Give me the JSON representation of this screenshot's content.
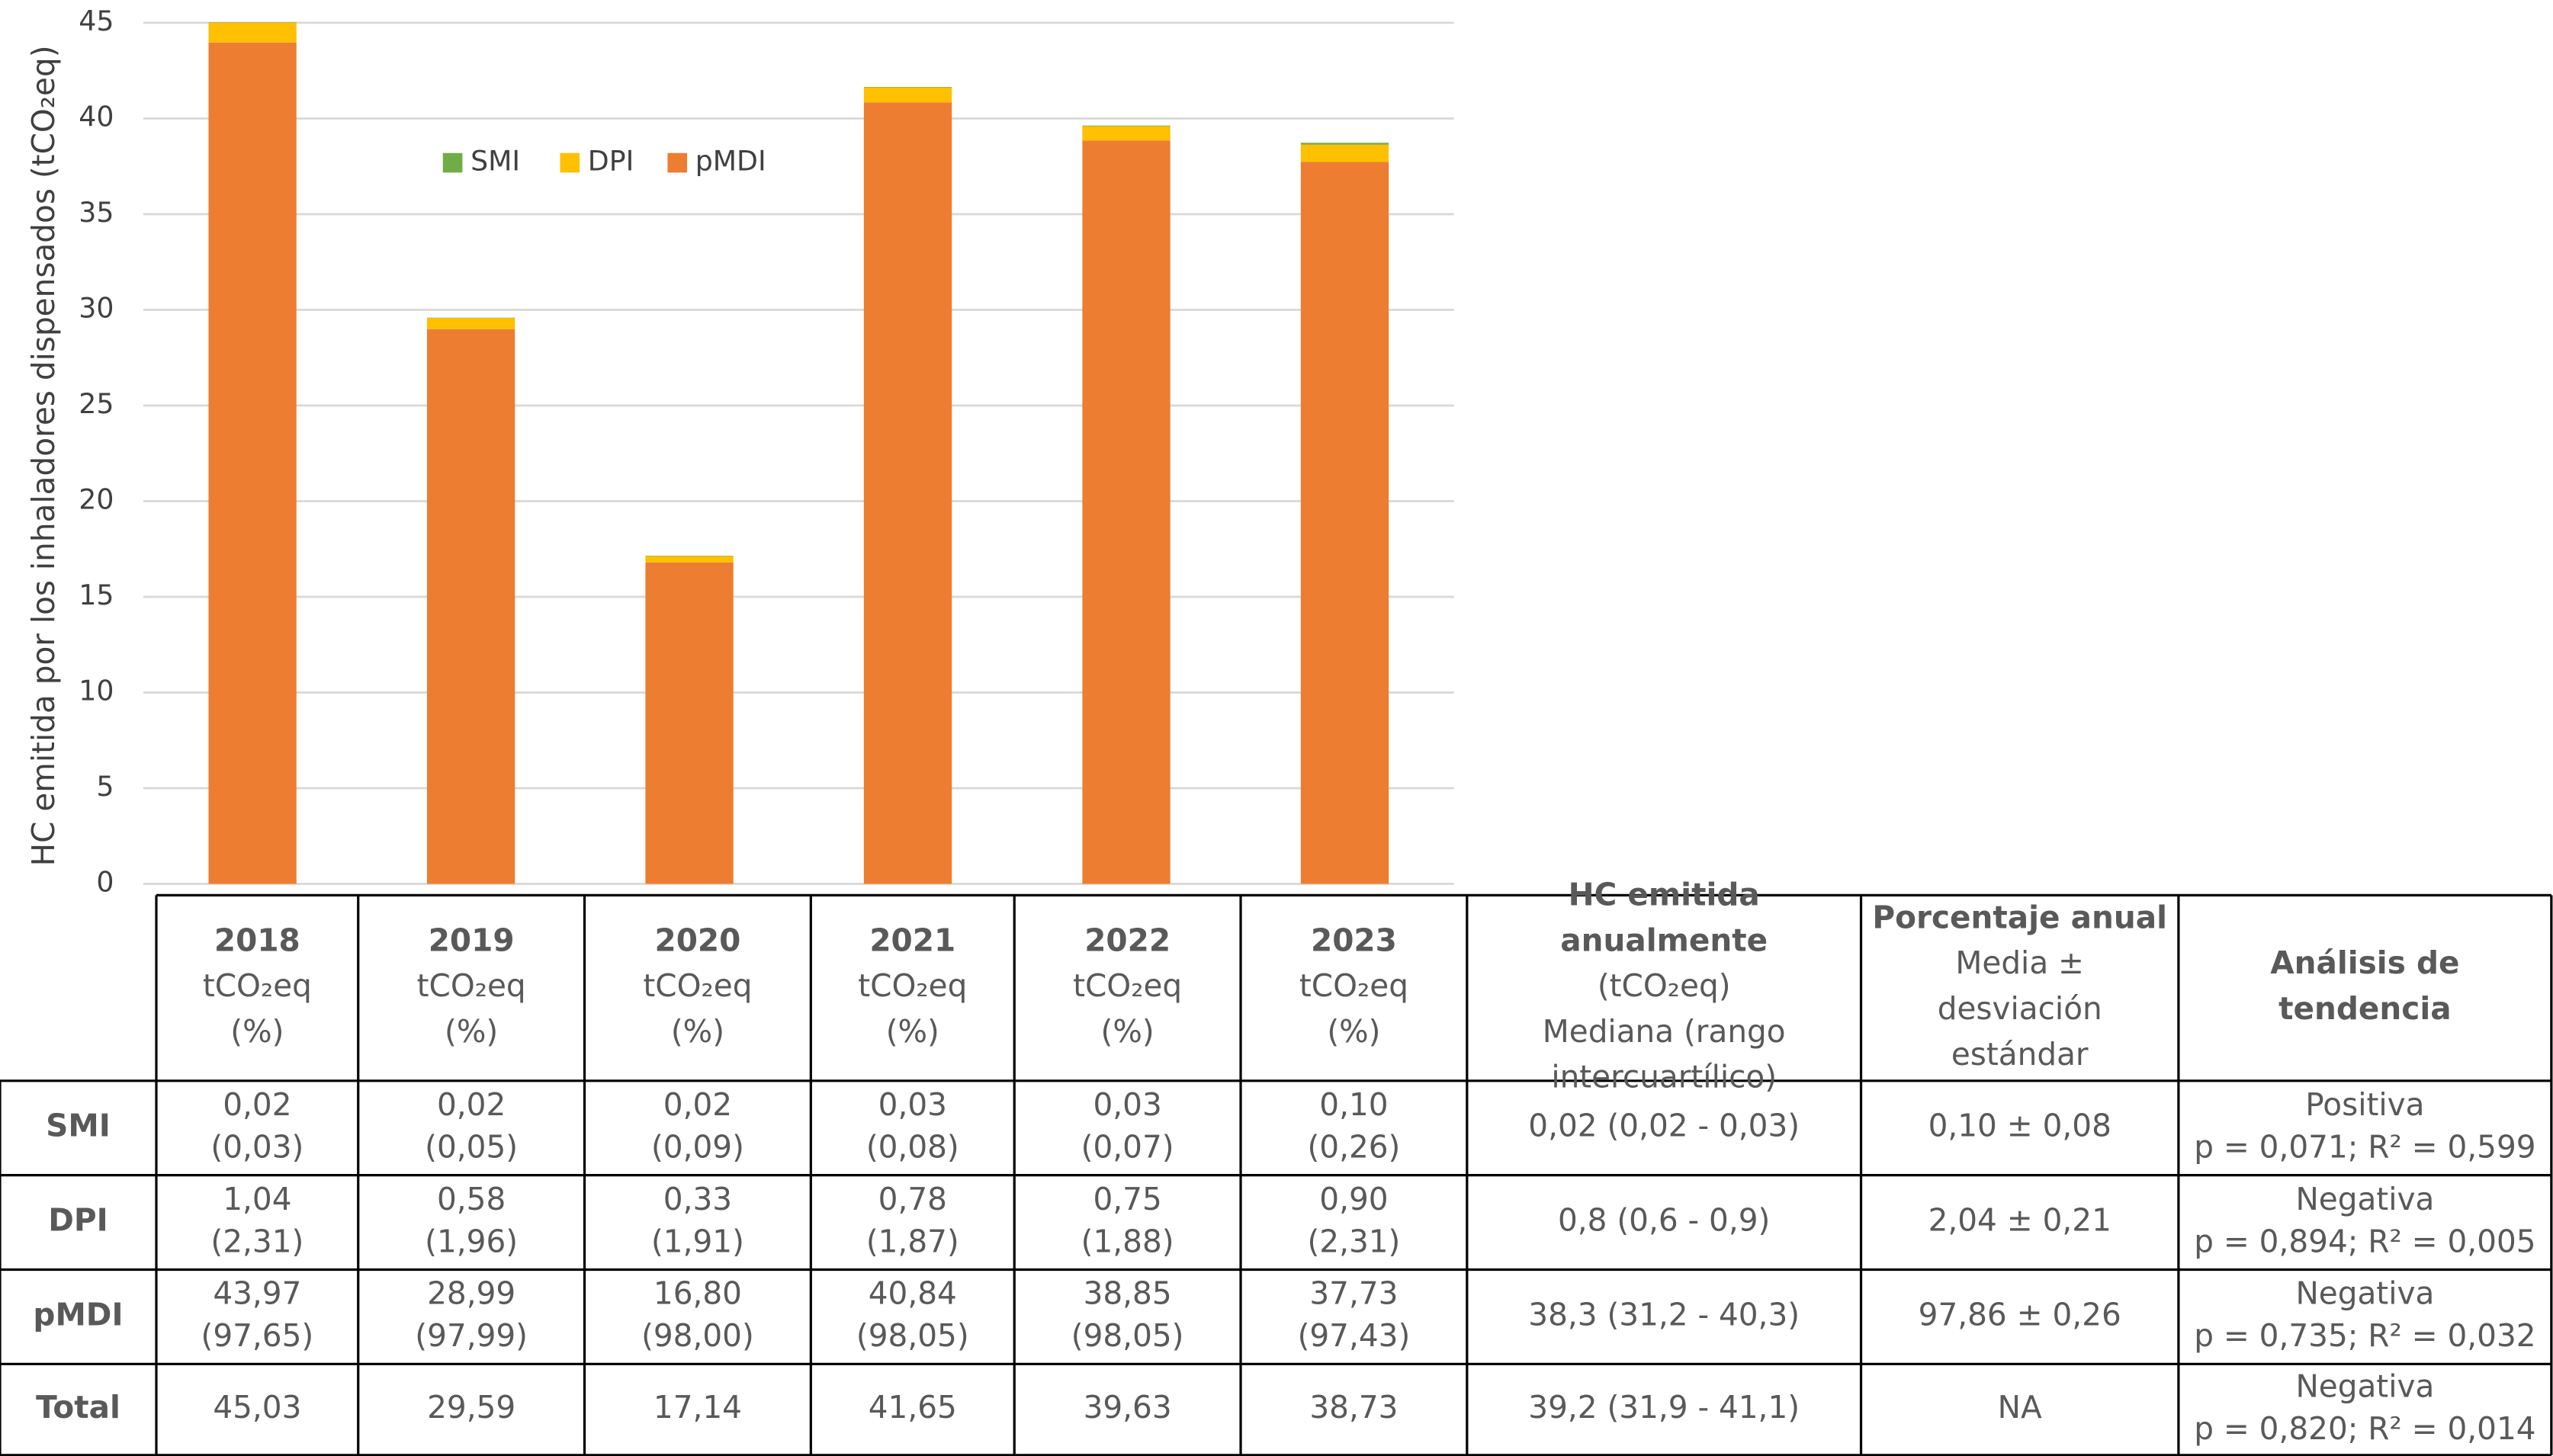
{
  "chart_data": {
    "type": "bar",
    "stacked": true,
    "y_label": "HC emitida por los inhaladores dispensados (tCO₂eq)",
    "categories": [
      "2018",
      "2019",
      "2020",
      "2021",
      "2022",
      "2023"
    ],
    "series": [
      {
        "name": "SMI",
        "color": "#70ad47",
        "values": [
          0.02,
          0.02,
          0.02,
          0.03,
          0.03,
          0.1
        ]
      },
      {
        "name": "DPI",
        "color": "#ffc000",
        "values": [
          1.04,
          0.58,
          0.33,
          0.78,
          0.75,
          0.9
        ]
      },
      {
        "name": "pMDI",
        "color": "#ed7d31",
        "values": [
          43.97,
          28.99,
          16.8,
          40.84,
          38.85,
          37.73
        ]
      }
    ],
    "ylim": [
      0,
      45
    ],
    "yticks": [
      0,
      5,
      10,
      15,
      20,
      25,
      30,
      35,
      40,
      45
    ],
    "grid": true
  },
  "table": {
    "header": [
      {
        "bold": [
          "2018"
        ],
        "normal": [
          "tCO₂eq",
          "(%)"
        ]
      },
      {
        "bold": [
          "2019"
        ],
        "normal": [
          "tCO₂eq",
          "(%)"
        ]
      },
      {
        "bold": [
          "2020"
        ],
        "normal": [
          "tCO₂eq",
          "(%)"
        ]
      },
      {
        "bold": [
          "2021"
        ],
        "normal": [
          "tCO₂eq",
          "(%)"
        ]
      },
      {
        "bold": [
          "2022"
        ],
        "normal": [
          "tCO₂eq",
          "(%)"
        ]
      },
      {
        "bold": [
          "2023"
        ],
        "normal": [
          "tCO₂eq",
          "(%)"
        ]
      },
      {
        "bold": [
          "HC emitida",
          "anualmente"
        ],
        "normal": [
          "(tCO₂eq)",
          "Mediana (rango",
          "intercuartílico)"
        ]
      },
      {
        "bold": [
          "Porcentaje anual"
        ],
        "normal": [
          "Media ±",
          "desviación",
          "estándar"
        ]
      },
      {
        "bold": [
          "Análisis de",
          "tendencia"
        ],
        "normal": []
      }
    ],
    "rows": [
      {
        "label": "SMI",
        "cells": [
          [
            "0,02",
            "(0,03)"
          ],
          [
            "0,02",
            "(0,05)"
          ],
          [
            "0,02",
            "(0,09)"
          ],
          [
            "0,03",
            "(0,08)"
          ],
          [
            "0,03",
            "(0,07)"
          ],
          [
            "0,10",
            "(0,26)"
          ],
          [
            "0,02 (0,02 - 0,03)"
          ],
          [
            "0,10 ± 0,08"
          ],
          [
            "Positiva",
            "p = 0,071; R² = 0,599"
          ]
        ]
      },
      {
        "label": "DPI",
        "cells": [
          [
            "1,04",
            "(2,31)"
          ],
          [
            "0,58",
            "(1,96)"
          ],
          [
            "0,33",
            "(1,91)"
          ],
          [
            "0,78",
            "(1,87)"
          ],
          [
            "0,75",
            "(1,88)"
          ],
          [
            "0,90",
            "(2,31)"
          ],
          [
            "0,8 (0,6 - 0,9)"
          ],
          [
            "2,04 ± 0,21"
          ],
          [
            "Negativa",
            "p = 0,894; R² = 0,005"
          ]
        ]
      },
      {
        "label": "pMDI",
        "cells": [
          [
            "43,97",
            "(97,65)"
          ],
          [
            "28,99",
            "(97,99)"
          ],
          [
            "16,80",
            "(98,00)"
          ],
          [
            "40,84",
            "(98,05)"
          ],
          [
            "38,85",
            "(98,05)"
          ],
          [
            "37,73",
            "(97,43)"
          ],
          [
            "38,3 (31,2 - 40,3)"
          ],
          [
            "97,86 ± 0,26"
          ],
          [
            "Negativa",
            "p = 0,735; R² = 0,032"
          ]
        ]
      },
      {
        "label": "Total",
        "cells": [
          [
            "45,03"
          ],
          [
            "29,59"
          ],
          [
            "17,14"
          ],
          [
            "41,65"
          ],
          [
            "39,63"
          ],
          [
            "38,73"
          ],
          [
            "39,2 (31,9 - 41,1)"
          ],
          [
            "NA"
          ],
          [
            "Negativa",
            "p = 0,820; R² = 0,014"
          ]
        ]
      }
    ]
  }
}
